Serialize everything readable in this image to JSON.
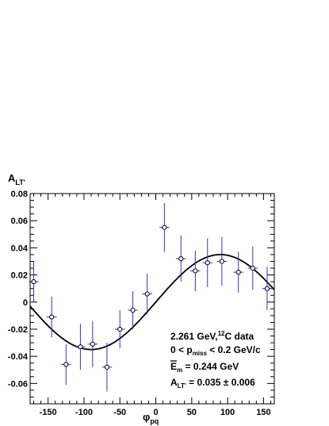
{
  "chart_data": {
    "type": "scatter",
    "ylabel_main": "A",
    "ylabel_sub": "LT'",
    "xlabel_main": "φ",
    "xlabel_sub": "pq",
    "xlim": [
      -175,
      165
    ],
    "ylim": [
      -0.075,
      0.08
    ],
    "xticks": [
      -150,
      -100,
      -50,
      0,
      50,
      100,
      150
    ],
    "xtick_labels": [
      "-150",
      "-100",
      "-50",
      "0",
      "50",
      "100",
      "150"
    ],
    "yticks": [
      -0.06,
      -0.04,
      -0.02,
      0,
      0.02,
      0.04,
      0.06,
      0.08
    ],
    "ytick_labels": [
      "-0.06",
      "-0.04",
      "-0.02",
      "0",
      "0.02",
      "0.04",
      "0.06",
      "0.08"
    ],
    "grid": false,
    "series": [
      {
        "marker": "open-circle",
        "color": "#3333cc",
        "points": [
          {
            "x": -170,
            "y": 0.015,
            "xerr": 7,
            "yerr": 0.015
          },
          {
            "x": -145,
            "y": -0.011,
            "xerr": 7,
            "yerr": 0.015
          },
          {
            "x": -125,
            "y": -0.046,
            "xerr": 7,
            "yerr": 0.015
          },
          {
            "x": -105,
            "y": -0.033,
            "xerr": 7,
            "yerr": 0.017
          },
          {
            "x": -88,
            "y": -0.031,
            "xerr": 7,
            "yerr": 0.017
          },
          {
            "x": -68,
            "y": -0.048,
            "xerr": 7,
            "yerr": 0.018
          },
          {
            "x": -50,
            "y": -0.02,
            "xerr": 7,
            "yerr": 0.014
          },
          {
            "x": -32,
            "y": -0.006,
            "xerr": 7,
            "yerr": 0.014
          },
          {
            "x": -12,
            "y": 0.006,
            "xerr": 7,
            "yerr": 0.015
          },
          {
            "x": 12,
            "y": 0.055,
            "xerr": 7,
            "yerr": 0.018
          },
          {
            "x": 35,
            "y": 0.032,
            "xerr": 7,
            "yerr": 0.017
          },
          {
            "x": 55,
            "y": 0.023,
            "xerr": 7,
            "yerr": 0.015
          },
          {
            "x": 72,
            "y": 0.029,
            "xerr": 7,
            "yerr": 0.018
          },
          {
            "x": 92,
            "y": 0.03,
            "xerr": 7,
            "yerr": 0.018
          },
          {
            "x": 115,
            "y": 0.022,
            "xerr": 7,
            "yerr": 0.015
          },
          {
            "x": 135,
            "y": 0.025,
            "xerr": 7,
            "yerr": 0.016
          },
          {
            "x": 155,
            "y": 0.01,
            "xerr": 7,
            "yerr": 0.016
          }
        ]
      }
    ],
    "fit": {
      "function": "A*sin(phi)",
      "amplitude": 0.035,
      "color": "#000000"
    }
  },
  "annotations": {
    "line1_main": "2.261 GeV,",
    "line1_sup": "12",
    "line1_tail": "C data",
    "line2_pre": "0 < p",
    "line2_sub": "miss",
    "line2_post": " < 0.2 GeV/c",
    "line3_main": "E",
    "line3_sub": "m",
    "line3_post": " = 0.244 GeV",
    "line4_main": "A",
    "line4_sub": "LT'",
    "line4_post": " = 0.035 ± 0.006"
  }
}
